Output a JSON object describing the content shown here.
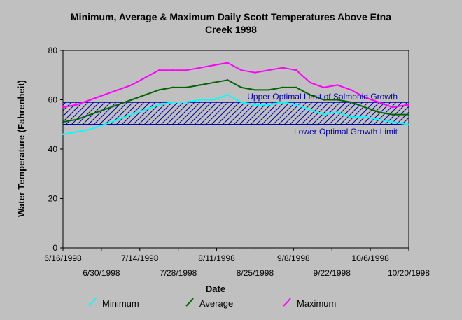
{
  "chart_data": {
    "type": "line",
    "title_lines": [
      "Minimum, Average & Maximum Daily Scott Temperatures Above Etna",
      "Creek 1998"
    ],
    "xlabel": "Date",
    "ylabel": "Water Temperature (Fahrenheit)",
    "x_start": "1998-06-16",
    "x_end": "1998-10-20",
    "ylim": [
      0,
      80
    ],
    "y_ticks": [
      "0",
      "20",
      "40",
      "60",
      "80"
    ],
    "x_ticks_upper": [
      "6/16/1998",
      "7/14/1998",
      "8/11/1998",
      "9/8/1998",
      "10/6/1998"
    ],
    "x_ticks_upper_dates": [
      "1998-06-16",
      "1998-07-14",
      "1998-08-11",
      "1998-09-08",
      "1998-10-06"
    ],
    "x_ticks_lower": [
      "6/30/1998",
      "7/28/1998",
      "8/25/1998",
      "9/22/1998",
      "10/20/1998"
    ],
    "x_ticks_lower_dates": [
      "1998-06-30",
      "1998-07-28",
      "1998-08-25",
      "1998-09-22",
      "1998-10-20"
    ],
    "reference_band": {
      "upper_value": 59,
      "lower_value": 50,
      "upper_label": "Upper Optimal Limit of Salmonid Growth",
      "lower_label": "Lower Optimal Growth Limit",
      "line_color": "#0000aa"
    },
    "x_dates": [
      "1998-06-16",
      "1998-06-21",
      "1998-06-26",
      "1998-07-01",
      "1998-07-06",
      "1998-07-11",
      "1998-07-16",
      "1998-07-21",
      "1998-07-26",
      "1998-07-31",
      "1998-08-05",
      "1998-08-10",
      "1998-08-15",
      "1998-08-20",
      "1998-08-25",
      "1998-08-30",
      "1998-09-04",
      "1998-09-09",
      "1998-09-14",
      "1998-09-19",
      "1998-09-24",
      "1998-09-29",
      "1998-10-04",
      "1998-10-09",
      "1998-10-14",
      "1998-10-20"
    ],
    "series": [
      {
        "name": "Minimum",
        "color": "#00ffff",
        "values": [
          46,
          47,
          48,
          50,
          52,
          54,
          56,
          58,
          59,
          59,
          60,
          60,
          62,
          59,
          58,
          58,
          59,
          58,
          56,
          54,
          55,
          53,
          53,
          52,
          51,
          50
        ]
      },
      {
        "name": "Average",
        "color": "#006400",
        "values": [
          51,
          52,
          54,
          56,
          58,
          60,
          62,
          64,
          65,
          65,
          66,
          67,
          68,
          65,
          64,
          64,
          65,
          65,
          62,
          60,
          60,
          59,
          57,
          55,
          54,
          54
        ]
      },
      {
        "name": "Maximum",
        "color": "#ff00ff",
        "values": [
          57,
          58,
          60,
          62,
          64,
          66,
          69,
          72,
          72,
          72,
          73,
          74,
          75,
          72,
          71,
          72,
          73,
          72,
          67,
          65,
          66,
          64,
          61,
          59,
          57,
          58
        ]
      }
    ]
  }
}
